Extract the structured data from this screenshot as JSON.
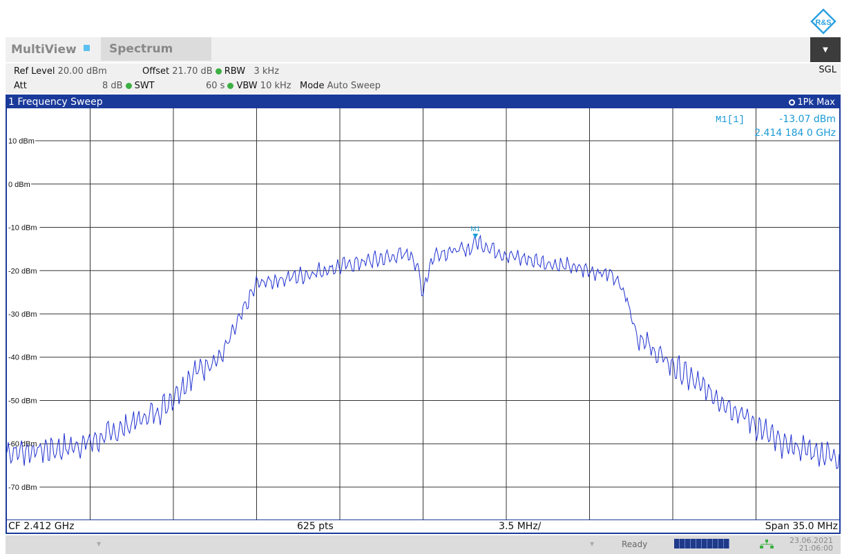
{
  "header": {
    "tab_multiview": "MultiView",
    "tab_spectrum": "Spectrum",
    "sgl": "SGL"
  },
  "settings": {
    "ref_level_label": "Ref Level",
    "ref_level_value": "20.00 dBm",
    "offset_label": "Offset",
    "offset_value": "21.70 dB",
    "rbw_label": "RBW",
    "rbw_value": "3 kHz",
    "att_label": "Att",
    "att_value": "8 dB",
    "swt_label": "SWT",
    "swt_value": "60 s",
    "vbw_label": "VBW",
    "vbw_value": "10 kHz",
    "mode_label": "Mode",
    "mode_value": "Auto Sweep"
  },
  "window": {
    "title": "1 Frequency Sweep",
    "trace_label": "1Pk Max"
  },
  "marker": {
    "name": "M1[1]",
    "level": "-13.07 dBm",
    "frequency": "2.414 184 0 GHz",
    "plot_label": "M1"
  },
  "bottom": {
    "cf": "CF 2.412 GHz",
    "points": "625 pts",
    "div": "3.5 MHz/",
    "span": "Span 35.0 MHz"
  },
  "status": {
    "ready": "Ready",
    "date": "23.06.2021",
    "time": "21:06:00"
  },
  "colors": {
    "trace": "#1e2fd0",
    "window_frame": "#1a3a9a",
    "marker": "#1a9ad6"
  },
  "chart_data": {
    "type": "line",
    "ylim": [
      -77.5,
      17.5
    ],
    "y_ticks": [
      10,
      0,
      -10,
      -20,
      -30,
      -40,
      -50,
      -60,
      -70
    ],
    "y_tick_labels": [
      "10 dBm",
      "0 dBm",
      "-10 dBm",
      "-20 dBm",
      "-30 dBm",
      "-40 dBm",
      "-50 dBm",
      "-60 dBm",
      "-70 dBm"
    ],
    "x_range_mhz": [
      -17.5,
      17.5
    ],
    "grid": true,
    "series": [
      {
        "x": [
          -17.5,
          -15.0,
          -13.6,
          -11.0,
          -9.5,
          -8.5,
          -7.0,
          -5.0,
          -3.5,
          -2.5,
          -1.5,
          -0.5,
          -0.1,
          0.0,
          0.1,
          0.5,
          2.0,
          2.2,
          3.5,
          5.0,
          6.0,
          7.0,
          8.0,
          8.5,
          9.0,
          10.0,
          11.5,
          13.6,
          15.0,
          17.5
        ],
        "y": [
          -62,
          -61,
          -59,
          -52,
          -43,
          -40,
          -23,
          -21,
          -19,
          -18,
          -17,
          -16,
          -22,
          -26,
          -22,
          -16,
          -15,
          -13.1,
          -16.5,
          -18,
          -19,
          -20,
          -21,
          -25,
          -35,
          -40,
          -46,
          -54,
          -60,
          -63
        ]
      }
    ],
    "markers": [
      {
        "name": "M1",
        "x": 2.2,
        "y": -13.07
      }
    ]
  }
}
